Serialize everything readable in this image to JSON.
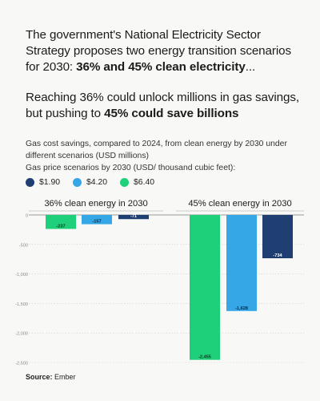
{
  "headline": {
    "p1_text": "The government's National Electricity Sector Strategy proposes two energy transition scenarios for 2030: ",
    "p1_bold": "36% and 45% clean electricity",
    "p1_end": "...",
    "p2_text": "Reaching 36% could unlock millions in gas savings, but pushing to ",
    "p2_bold": "45% could save billions"
  },
  "source": {
    "label": "Source:",
    "value": "Ember"
  },
  "chart_data": {
    "type": "bar",
    "title": "",
    "subtitle": "Gas cost savings, compared to 2024, from clean energy by 2030 under different scenarios (USD millions)",
    "legend_title": "Gas price scenarios by 2030 (USD/ thousand cubic feet):",
    "legend_placement": "top-left",
    "series": [
      {
        "name": "$1.90",
        "color": "#1f3f72"
      },
      {
        "name": "$4.20",
        "color": "#35a6e6"
      },
      {
        "name": "$6.40",
        "color": "#1fd07b"
      }
    ],
    "bar_order": [
      "$6.40",
      "$4.20",
      "$1.90"
    ],
    "panels": [
      {
        "title": "36% clean energy in 2030",
        "values": {
          "$6.40": -237,
          "$4.20": -157,
          "$1.90": -71
        },
        "labels": {
          "$6.40": "-237",
          "$4.20": "-157",
          "$1.90": "-71"
        }
      },
      {
        "title": "45% clean energy in 2030",
        "values": {
          "$6.40": -2455,
          "$4.20": -1628,
          "$1.90": -734
        },
        "labels": {
          "$6.40": "-2,455",
          "$4.20": "-1,628",
          "$1.90": "-734"
        }
      }
    ],
    "y_ticks": [
      0,
      -500,
      -1000,
      -1500,
      -2000,
      -2500
    ],
    "y_tick_labels": [
      "0",
      "-500",
      "-1,000",
      "-1,500",
      "-2,000",
      "-2,500"
    ],
    "ylim": [
      -2500,
      0
    ],
    "grid": true
  }
}
